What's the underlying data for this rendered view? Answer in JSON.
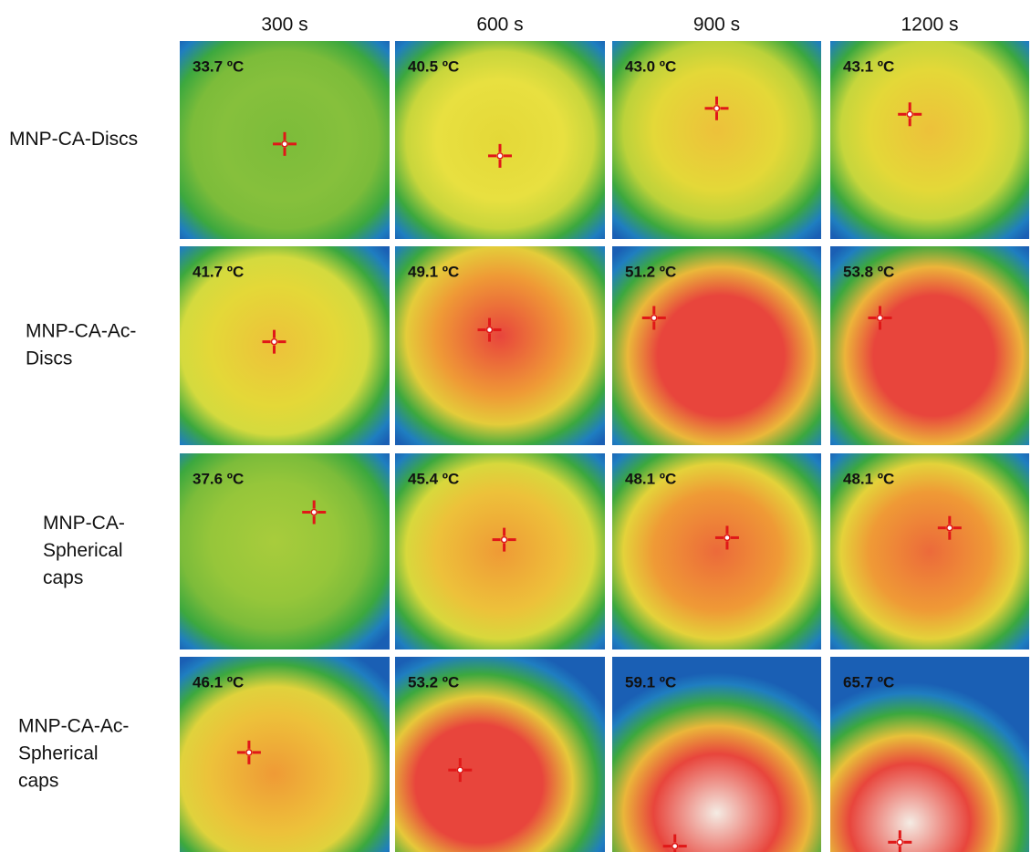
{
  "columns": [
    "300 s",
    "600 s",
    "900 s",
    "1200 s"
  ],
  "rows": [
    {
      "label": [
        "MNP-CA-Discs"
      ],
      "cells": [
        "33.7 ºC",
        "40.5 ºC",
        "43.0 ºC",
        "43.1 ºC"
      ]
    },
    {
      "label": [
        "MNP-CA-Ac-",
        "Discs"
      ],
      "cells": [
        "41.7 ºC",
        "49.1 ºC",
        "51.2 ºC",
        "53.8 ºC"
      ]
    },
    {
      "label": [
        "MNP-CA-",
        "Spherical",
        "caps"
      ],
      "cells": [
        "37.6 ºC",
        "45.4 ºC",
        "48.1 ºC",
        "48.1 ºC"
      ]
    },
    {
      "label": [
        "MNP-CA-Ac-",
        "Spherical",
        "caps"
      ],
      "cells": [
        "46.1 ºC",
        "53.2 ºC",
        "59.1 ºC",
        "65.7 ºC"
      ]
    }
  ]
}
